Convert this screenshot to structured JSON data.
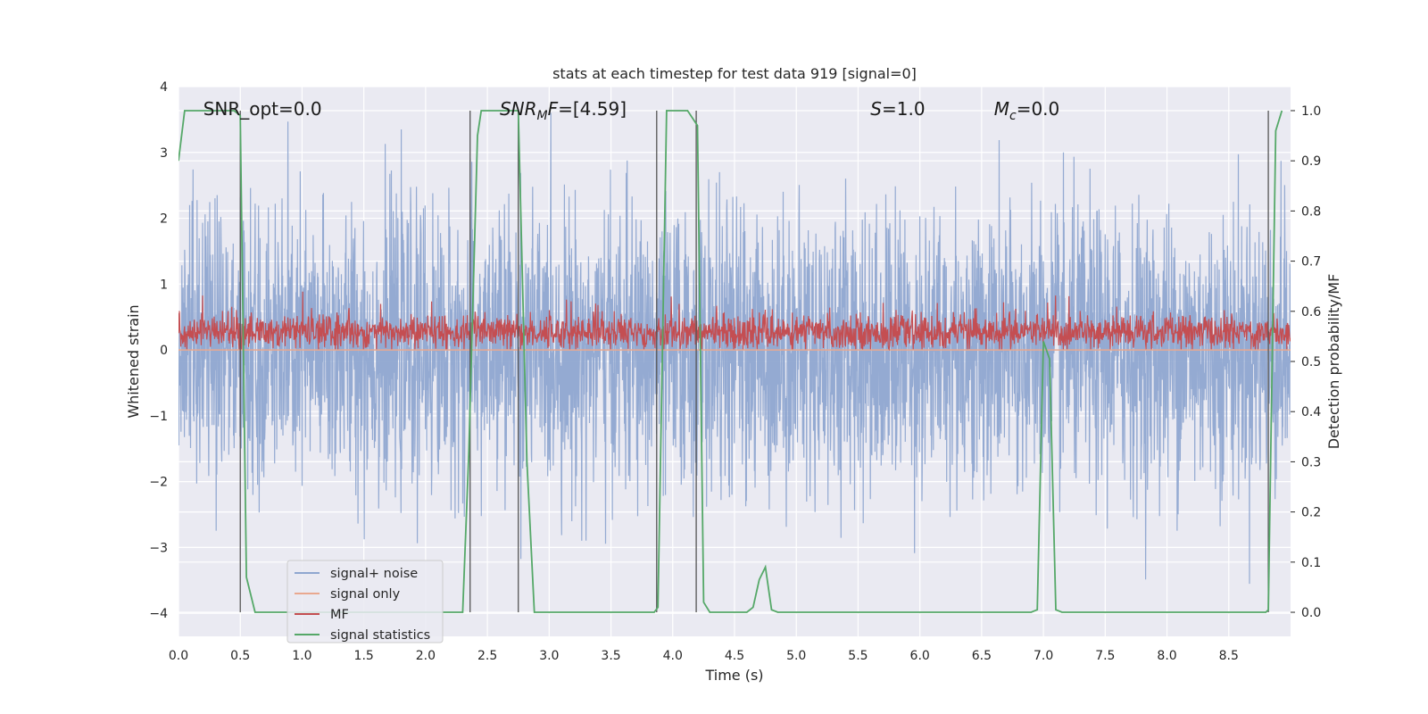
{
  "chart_data": {
    "type": "line",
    "title": "stats at each timestep for test data 919 [signal=0]",
    "xlabel": "Time (s)",
    "ylabel": "Whitened strain",
    "ylabel_right": "Detection probability/MF",
    "xlim": [
      0.0,
      9.0
    ],
    "ylim": [
      -4.35,
      4.0
    ],
    "ylim_right": [
      -0.048,
      1.048
    ],
    "x_ticks": [
      "0.0",
      "0.5",
      "1.0",
      "1.5",
      "2.0",
      "2.5",
      "3.0",
      "3.5",
      "4.0",
      "4.5",
      "5.0",
      "5.5",
      "6.0",
      "6.5",
      "7.0",
      "7.5",
      "8.0",
      "8.5"
    ],
    "y_ticks": [
      "4",
      "3",
      "2",
      "1",
      "0",
      "−1",
      "−2",
      "−3",
      "−4"
    ],
    "y_ticks_right": [
      "1.0",
      "0.9",
      "0.8",
      "0.7",
      "0.6",
      "0.5",
      "0.4",
      "0.3",
      "0.2",
      "0.1",
      "0.0"
    ],
    "grid": true,
    "legend_position": "lower-left",
    "annotations": [
      {
        "text": "SNR_opt=0.0",
        "x": 0.2,
        "y": 3.65
      },
      {
        "text": "SNR_MF=[4.59]",
        "x": 2.6,
        "y": 3.65
      },
      {
        "text": "S=1.0",
        "x": 5.6,
        "y": 3.65
      },
      {
        "text": "M_c=0.0",
        "x": 6.6,
        "y": 3.65
      }
    ],
    "series": [
      {
        "name": "signal+ noise",
        "color": "#8fa7d0",
        "description": "whitened strain noise, roughly within ±2 with spikes to ±3.6"
      },
      {
        "name": "signal only",
        "color": "#e9a88f",
        "values_constant": 0.0
      },
      {
        "name": "MF",
        "color": "#c44e52",
        "description": "matched filter output, roughly between 0.0 and 0.6, peaks to 0.9"
      },
      {
        "name": "signal statistics",
        "color": "#55a868",
        "axis": "right",
        "points": [
          [
            0.0,
            0.9
          ],
          [
            0.05,
            1.0
          ],
          [
            0.45,
            1.0
          ],
          [
            0.5,
            0.99
          ],
          [
            0.55,
            0.07
          ],
          [
            0.62,
            0.0
          ],
          [
            2.3,
            0.0
          ],
          [
            2.35,
            0.32
          ],
          [
            2.42,
            0.95
          ],
          [
            2.45,
            1.0
          ],
          [
            2.75,
            1.0
          ],
          [
            2.82,
            0.3
          ],
          [
            2.88,
            0.0
          ],
          [
            3.85,
            0.0
          ],
          [
            3.88,
            0.01
          ],
          [
            3.95,
            1.0
          ],
          [
            4.12,
            1.0
          ],
          [
            4.2,
            0.97
          ],
          [
            4.25,
            0.02
          ],
          [
            4.3,
            0.0
          ],
          [
            4.6,
            0.0
          ],
          [
            4.65,
            0.01
          ],
          [
            4.7,
            0.065
          ],
          [
            4.75,
            0.09
          ],
          [
            4.8,
            0.005
          ],
          [
            4.85,
            0.0
          ],
          [
            6.9,
            0.0
          ],
          [
            6.95,
            0.005
          ],
          [
            7.0,
            0.54
          ],
          [
            7.05,
            0.505
          ],
          [
            7.1,
            0.005
          ],
          [
            7.15,
            0.0
          ],
          [
            8.8,
            0.0
          ],
          [
            8.82,
            0.005
          ],
          [
            8.88,
            0.96
          ],
          [
            8.93,
            1.0
          ]
        ]
      }
    ],
    "vertical_markers": [
      0.5,
      2.36,
      2.75,
      3.87,
      4.19,
      8.82
    ]
  },
  "legend": {
    "items": [
      {
        "label": "signal+ noise",
        "color": "#8fa7d0"
      },
      {
        "label": "signal only",
        "color": "#e9a88f"
      },
      {
        "label": "MF",
        "color": "#c44e52"
      },
      {
        "label": "signal statistics",
        "color": "#55a868"
      }
    ]
  },
  "colors": {
    "plot_background": "#eaeaf2",
    "grid": "#ffffff",
    "marker_line": "#555555"
  }
}
